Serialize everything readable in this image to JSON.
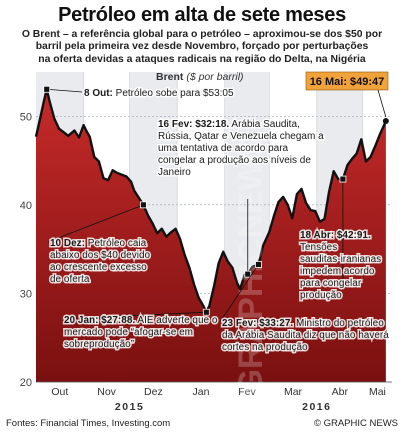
{
  "header": {
    "title": "Petróleo em alta de sete meses",
    "subtitle_lines": [
      "O Brent – a referência global para o petróleo – aproximou-se dos $50 por",
      "barril pela primeira vez desde Novembro, forçado por perturbações",
      "na oferta devidas a ataques radicais na região do Delta, na Nigéria"
    ]
  },
  "footer": {
    "source": "Fontes: Financial Times, Investing.com",
    "credit": "© GRAPHIC NEWS"
  },
  "watermark": "GRAPHICNEWS",
  "chart_data": {
    "type": "line",
    "title": "",
    "series_label": "Brent",
    "unit_label": "($ por barril)",
    "xlabel": "",
    "ylabel": "",
    "ylim": [
      20,
      55
    ],
    "yticks": [
      20,
      30,
      40,
      50
    ],
    "grid": true,
    "month_ticks": [
      "Out",
      "Nov",
      "Dez",
      "Jan",
      "Fev",
      "Mar",
      "Abr",
      "Mai"
    ],
    "year_labels": [
      {
        "label": "2015",
        "between": [
          "Nov",
          "Dez"
        ]
      },
      {
        "label": "2016",
        "between": [
          "Mar",
          "Abr"
        ]
      }
    ],
    "series": [
      {
        "name": "Brent",
        "x": [
          "2015-10-01",
          "2015-10-04",
          "2015-10-06",
          "2015-10-08",
          "2015-10-10",
          "2015-10-13",
          "2015-10-16",
          "2015-10-19",
          "2015-10-22",
          "2015-10-26",
          "2015-10-29",
          "2015-11-01",
          "2015-11-03",
          "2015-11-05",
          "2015-11-08",
          "2015-11-11",
          "2015-11-14",
          "2015-11-17",
          "2015-11-20",
          "2015-11-23",
          "2015-11-26",
          "2015-11-29",
          "2015-12-02",
          "2015-12-04",
          "2015-12-07",
          "2015-12-10",
          "2015-12-13",
          "2015-12-16",
          "2015-12-19",
          "2015-12-22",
          "2015-12-25",
          "2015-12-28",
          "2015-12-31",
          "2016-01-03",
          "2016-01-06",
          "2016-01-09",
          "2016-01-12",
          "2016-01-15",
          "2016-01-18",
          "2016-01-20",
          "2016-01-22",
          "2016-01-25",
          "2016-01-28",
          "2016-01-31",
          "2016-02-03",
          "2016-02-06",
          "2016-02-09",
          "2016-02-11",
          "2016-02-14",
          "2016-02-16",
          "2016-02-19",
          "2016-02-23",
          "2016-02-26",
          "2016-03-01",
          "2016-03-04",
          "2016-03-07",
          "2016-03-10",
          "2016-03-13",
          "2016-03-16",
          "2016-03-19",
          "2016-03-22",
          "2016-03-25",
          "2016-03-28",
          "2016-03-31",
          "2016-04-03",
          "2016-04-06",
          "2016-04-09",
          "2016-04-12",
          "2016-04-15",
          "2016-04-18",
          "2016-04-21",
          "2016-04-24",
          "2016-04-27",
          "2016-04-30",
          "2016-05-03",
          "2016-05-06",
          "2016-05-09",
          "2016-05-12",
          "2016-05-16"
        ],
        "values": [
          47.7,
          50.0,
          51.6,
          53.05,
          51.6,
          49.7,
          48.6,
          48.2,
          47.8,
          48.4,
          47.6,
          49.0,
          48.3,
          47.7,
          45.4,
          44.9,
          43.0,
          42.8,
          43.9,
          43.6,
          43.4,
          43.2,
          42.6,
          41.6,
          40.8,
          40.0,
          38.8,
          37.9,
          36.8,
          37.3,
          36.4,
          36.9,
          37.3,
          36.1,
          34.3,
          32.9,
          31.0,
          29.5,
          28.6,
          27.88,
          28.6,
          30.8,
          33.4,
          34.7,
          33.6,
          32.9,
          31.2,
          30.5,
          32.1,
          32.18,
          33.0,
          33.27,
          35.4,
          36.9,
          38.7,
          40.3,
          40.9,
          40.0,
          38.5,
          41.2,
          41.8,
          40.2,
          39.4,
          39.3,
          38.1,
          38.4,
          41.5,
          43.8,
          42.9,
          42.91,
          44.5,
          45.2,
          45.8,
          47.4,
          44.9,
          45.4,
          46.6,
          47.9,
          49.47
        ]
      }
    ],
    "annotations": [
      {
        "date": "2015-10-08",
        "value": 53.05,
        "bold": "8 Out:",
        "text": "Petróleo sobe para $53:05"
      },
      {
        "date": "2015-12-10",
        "value": 40.0,
        "bold": "10 Dez:",
        "text": "Petróleo caia abaixo dos $40 devido ao crescente excesso de oferta"
      },
      {
        "date": "2016-01-20",
        "value": 27.88,
        "bold": "20 Jan: $27:88.",
        "text": "AIE adverte que o mercado pode “afogar-se em sobreprodução”"
      },
      {
        "date": "2016-02-16",
        "value": 32.18,
        "bold": "16 Fev: $32:18.",
        "text": "Arábia Saudita, Rússia, Qatar e Venezuela chegam a uma tentativa de acordo para congelar a produção aos níveis de Janeiro"
      },
      {
        "date": "2016-02-23",
        "value": 33.27,
        "bold": "23 Fev: $33:27.",
        "text": "Ministro do petróleo da Arábia Saudita diz que não haverá cortes na produção"
      },
      {
        "date": "2016-04-18",
        "value": 42.91,
        "bold": "18 Abr: $42:91.",
        "text": "Tensões sauditas-iranianas impedem acordo para congelar produção"
      }
    ],
    "highlight": {
      "date": "2016-05-16",
      "value": 49.47,
      "label": "16 Mai: $49:47"
    },
    "colors": {
      "line": "#111111",
      "fill": "#c62a2a",
      "highlight_fill": "#f2a23a",
      "year_band": "#e9ebee"
    }
  }
}
